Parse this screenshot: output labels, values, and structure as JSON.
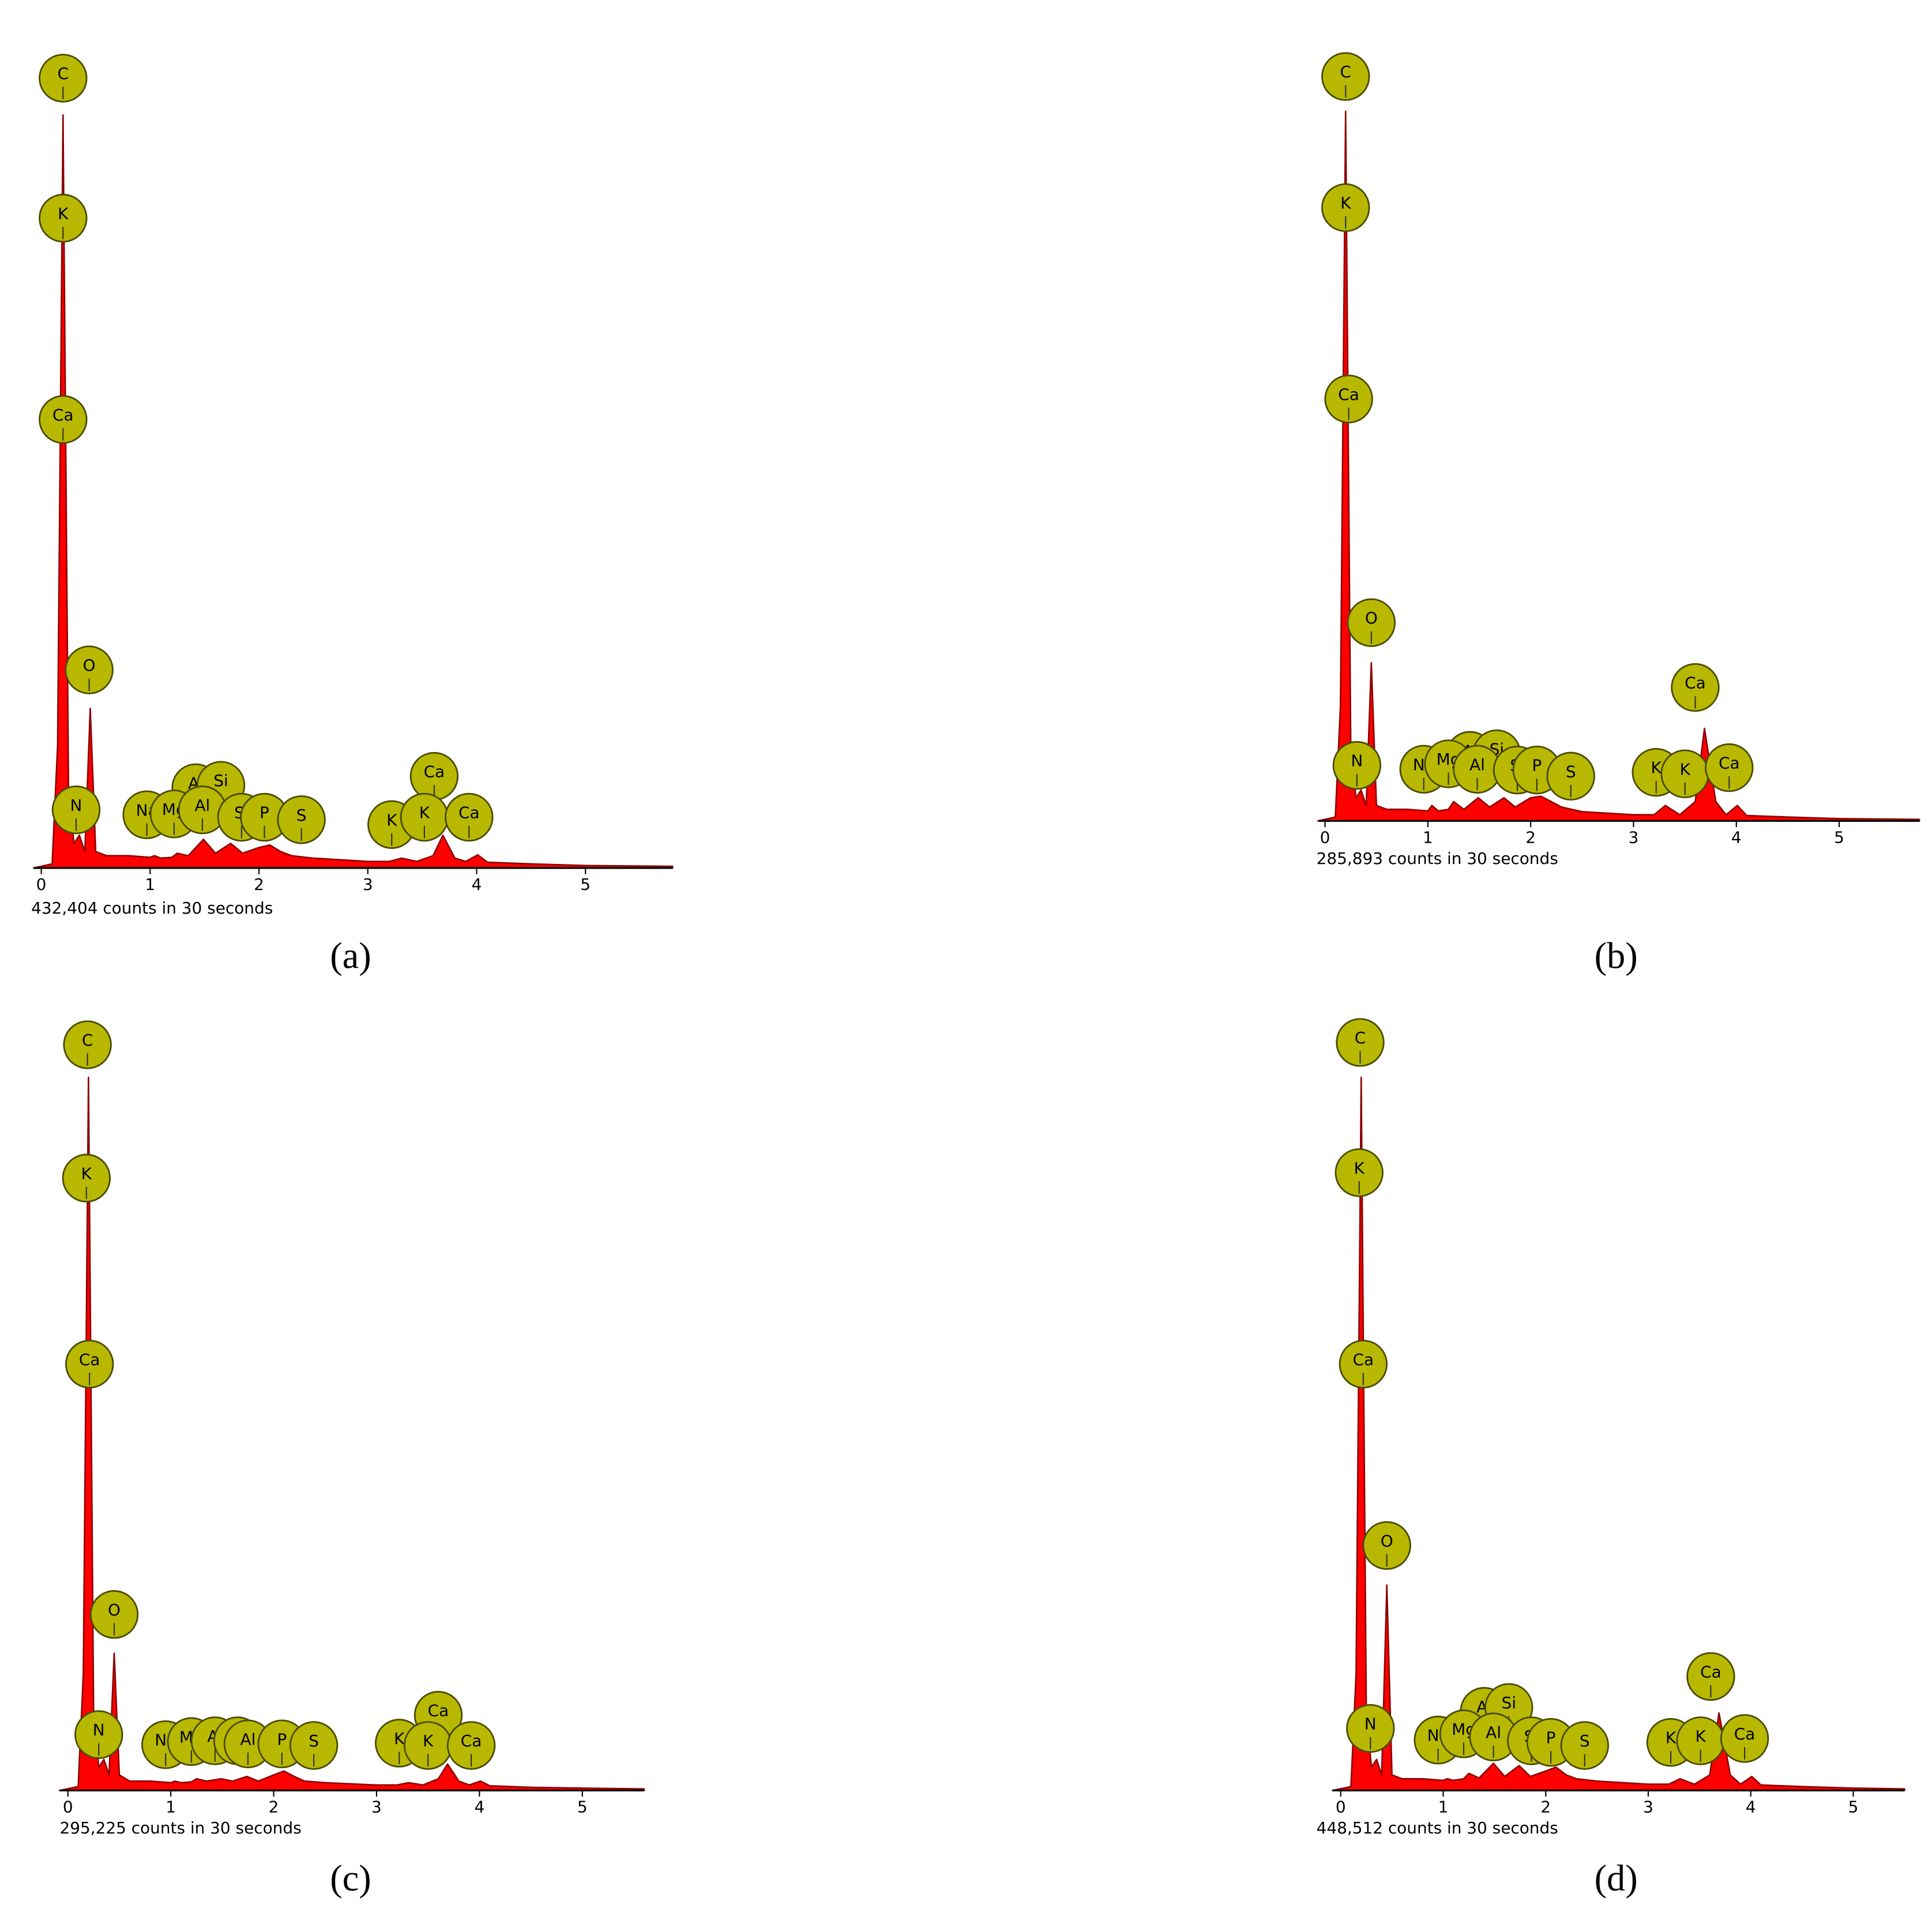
{
  "chart_data": [
    {
      "type": "area",
      "panel": "(a)",
      "caption": "432,404 counts in 30 seconds",
      "color": "#ff0000",
      "label_color": "#b8b800",
      "xlim": [
        -0.07,
        5.8
      ],
      "xticks": [
        0,
        1,
        2,
        3,
        4,
        5
      ],
      "ylim": [
        0,
        100
      ],
      "x": [
        -0.07,
        0.1,
        0.15,
        0.2,
        0.25,
        0.3,
        0.35,
        0.4,
        0.45,
        0.5,
        0.6,
        0.8,
        1.0,
        1.04,
        1.1,
        1.2,
        1.25,
        1.35,
        1.49,
        1.6,
        1.74,
        1.85,
        2.0,
        2.1,
        2.2,
        2.3,
        2.5,
        3.0,
        3.2,
        3.31,
        3.45,
        3.6,
        3.69,
        3.8,
        3.9,
        4.01,
        4.1,
        4.5,
        5.0,
        5.8
      ],
      "values": [
        0,
        0.5,
        15,
        92,
        10,
        3,
        4,
        2,
        19.5,
        2,
        1.5,
        1.5,
        1.3,
        1.5,
        1.2,
        1.3,
        1.8,
        1.5,
        3.5,
        1.8,
        3,
        1.8,
        2.5,
        2.8,
        2,
        1.5,
        1.2,
        0.8,
        0.8,
        1.2,
        0.8,
        1.5,
        4,
        1.2,
        0.8,
        1.6,
        0.7,
        0.5,
        0.3,
        0.2
      ],
      "labels": [
        {
          "text": "C",
          "x": 0.2,
          "y": 96.5
        },
        {
          "text": "K",
          "x": 0.2,
          "y": 79.4
        },
        {
          "text": "Ca",
          "x": 0.2,
          "y": 54.8
        },
        {
          "text": "O",
          "x": 0.44,
          "y": 24.2
        },
        {
          "text": "N",
          "x": 0.32,
          "y": 7.1
        },
        {
          "text": "Al",
          "x": 1.42,
          "y": 9.8
        },
        {
          "text": "Si",
          "x": 1.65,
          "y": 10.1
        },
        {
          "text": "Na",
          "x": 0.97,
          "y": 6.5
        },
        {
          "text": "Mg",
          "x": 1.22,
          "y": 6.6
        },
        {
          "text": "Al",
          "x": 1.48,
          "y": 7.1
        },
        {
          "text": "Si",
          "x": 1.84,
          "y": 6.2
        },
        {
          "text": "P",
          "x": 2.05,
          "y": 6.2
        },
        {
          "text": "S",
          "x": 2.39,
          "y": 5.9
        },
        {
          "text": "K",
          "x": 3.22,
          "y": 5.3
        },
        {
          "text": "Ca",
          "x": 3.61,
          "y": 11.2
        },
        {
          "text": "K",
          "x": 3.52,
          "y": 6.2
        },
        {
          "text": "Ca",
          "x": 3.93,
          "y": 6.2
        }
      ]
    },
    {
      "type": "area",
      "panel": "(b)",
      "caption": "285,893 counts in 30 seconds",
      "color": "#ff0000",
      "label_color": "#b8b800",
      "xlim": [
        -0.06,
        5.78
      ],
      "xticks": [
        0,
        1,
        2,
        3,
        4,
        5
      ],
      "ylim": [
        0,
        100
      ],
      "x": [
        -0.07,
        0.1,
        0.15,
        0.2,
        0.25,
        0.3,
        0.35,
        0.4,
        0.45,
        0.5,
        0.6,
        0.8,
        1.0,
        1.04,
        1.1,
        1.2,
        1.25,
        1.35,
        1.49,
        1.6,
        1.74,
        1.85,
        2.0,
        2.1,
        2.2,
        2.3,
        2.5,
        3.0,
        3.2,
        3.31,
        3.45,
        3.6,
        3.69,
        3.8,
        3.9,
        4.01,
        4.1,
        4.5,
        5.0,
        5.78
      ],
      "values": [
        0,
        0.5,
        15,
        92,
        10,
        3,
        4,
        2,
        20.5,
        2,
        1.5,
        1.5,
        1.3,
        2,
        1.3,
        1.5,
        2.5,
        1.5,
        3,
        1.8,
        3,
        1.8,
        3,
        3.2,
        2.5,
        1.8,
        1.2,
        0.8,
        0.8,
        2,
        0.8,
        2.5,
        12,
        2.5,
        0.8,
        2,
        0.7,
        0.5,
        0.3,
        0.2
      ],
      "labels": [
        {
          "text": "C",
          "x": 0.2,
          "y": 96.5
        },
        {
          "text": "K",
          "x": 0.2,
          "y": 79.5
        },
        {
          "text": "Ca",
          "x": 0.23,
          "y": 54.7
        },
        {
          "text": "O",
          "x": 0.45,
          "y": 25.7
        },
        {
          "text": "N",
          "x": 0.31,
          "y": 7.2
        },
        {
          "text": "Al",
          "x": 1.41,
          "y": 8.5
        },
        {
          "text": "Si",
          "x": 1.67,
          "y": 8.7
        },
        {
          "text": "Na",
          "x": 0.96,
          "y": 6.7
        },
        {
          "text": "Mg",
          "x": 1.2,
          "y": 7.4
        },
        {
          "text": "Al",
          "x": 1.48,
          "y": 6.7
        },
        {
          "text": "Si",
          "x": 1.87,
          "y": 6.6
        },
        {
          "text": "P",
          "x": 2.06,
          "y": 6.6
        },
        {
          "text": "S",
          "x": 2.39,
          "y": 5.8
        },
        {
          "text": "K",
          "x": 3.22,
          "y": 6.3
        },
        {
          "text": "Ca",
          "x": 3.6,
          "y": 17.3
        },
        {
          "text": "K",
          "x": 3.5,
          "y": 6.1
        },
        {
          "text": "Ca",
          "x": 3.93,
          "y": 6.9
        }
      ]
    },
    {
      "type": "area",
      "panel": "(c)",
      "caption": "295,225 counts in 30 seconds",
      "color": "#ff0000",
      "label_color": "#b8b800",
      "xlim": [
        -0.08,
        5.6
      ],
      "xticks": [
        0,
        1,
        2,
        3,
        4,
        5
      ],
      "ylim": [
        0,
        100
      ],
      "x": [
        -0.08,
        0.1,
        0.15,
        0.2,
        0.25,
        0.3,
        0.35,
        0.4,
        0.45,
        0.5,
        0.6,
        0.8,
        1.0,
        1.04,
        1.1,
        1.2,
        1.25,
        1.35,
        1.49,
        1.6,
        1.74,
        1.85,
        2.0,
        2.1,
        2.2,
        2.3,
        2.5,
        3.0,
        3.2,
        3.31,
        3.45,
        3.6,
        3.69,
        3.8,
        3.9,
        4.01,
        4.1,
        4.5,
        5.0,
        5.6
      ],
      "values": [
        0,
        0.5,
        15,
        92,
        10,
        3,
        4,
        2,
        17.7,
        2,
        1.2,
        1.2,
        1.0,
        1.2,
        1.0,
        1.1,
        1.5,
        1.2,
        1.5,
        1.2,
        1.8,
        1.2,
        2,
        2.5,
        1.8,
        1.2,
        1,
        0.7,
        0.7,
        1,
        0.7,
        1.5,
        3.4,
        1.2,
        0.7,
        1.2,
        0.6,
        0.4,
        0.3,
        0.2
      ],
      "labels": [
        {
          "text": "C",
          "x": 0.19,
          "y": 96.2
        },
        {
          "text": "K",
          "x": 0.18,
          "y": 79
        },
        {
          "text": "Ca",
          "x": 0.21,
          "y": 55
        },
        {
          "text": "O",
          "x": 0.45,
          "y": 22.7
        },
        {
          "text": "N",
          "x": 0.3,
          "y": 7.2
        },
        {
          "text": "Na",
          "x": 0.95,
          "y": 5.9
        },
        {
          "text": "Mg",
          "x": 1.2,
          "y": 6.3
        },
        {
          "text": "Al",
          "x": 1.43,
          "y": 6.4
        },
        {
          "text": "Si",
          "x": 1.65,
          "y": 6.4
        },
        {
          "text": "Al",
          "x": 1.75,
          "y": 6.0
        },
        {
          "text": "P",
          "x": 2.08,
          "y": 6.0
        },
        {
          "text": "S",
          "x": 2.39,
          "y": 5.8
        },
        {
          "text": "K",
          "x": 3.22,
          "y": 6.1
        },
        {
          "text": "Ca",
          "x": 3.6,
          "y": 9.7
        },
        {
          "text": "K",
          "x": 3.5,
          "y": 5.8
        },
        {
          "text": "Ca",
          "x": 3.92,
          "y": 5.8
        }
      ]
    },
    {
      "type": "area",
      "panel": "(d)",
      "caption": "448,512 counts in 30 seconds",
      "color": "#ff0000",
      "label_color": "#b8b800",
      "xlim": [
        -0.08,
        5.5
      ],
      "xticks": [
        0,
        1,
        2,
        3,
        4,
        5
      ],
      "ylim": [
        0,
        100
      ],
      "x": [
        -0.08,
        0.1,
        0.15,
        0.2,
        0.25,
        0.3,
        0.35,
        0.4,
        0.45,
        0.5,
        0.6,
        0.8,
        1.0,
        1.04,
        1.1,
        1.2,
        1.25,
        1.35,
        1.49,
        1.6,
        1.74,
        1.85,
        2.0,
        2.1,
        2.2,
        2.3,
        2.5,
        3.0,
        3.2,
        3.31,
        3.45,
        3.6,
        3.69,
        3.8,
        3.9,
        4.01,
        4.1,
        4.5,
        5.0,
        5.5
      ],
      "values": [
        0,
        0.5,
        15,
        92,
        10,
        3,
        4,
        2,
        26.5,
        2,
        1.5,
        1.5,
        1.3,
        1.5,
        1.3,
        1.5,
        2.2,
        1.6,
        3.5,
        1.8,
        3.2,
        1.8,
        2.5,
        3,
        2,
        1.5,
        1.2,
        0.8,
        0.8,
        1.5,
        0.8,
        2,
        10,
        2,
        0.8,
        1.8,
        0.7,
        0.5,
        0.3,
        0.2
      ],
      "labels": [
        {
          "text": "C",
          "x": 0.19,
          "y": 96.5
        },
        {
          "text": "K",
          "x": 0.18,
          "y": 79.7
        },
        {
          "text": "Ca",
          "x": 0.22,
          "y": 55
        },
        {
          "text": "O",
          "x": 0.45,
          "y": 31.6
        },
        {
          "text": "N",
          "x": 0.29,
          "y": 8
        },
        {
          "text": "Al",
          "x": 1.4,
          "y": 10.2
        },
        {
          "text": "Si",
          "x": 1.64,
          "y": 10.7
        },
        {
          "text": "Na",
          "x": 0.95,
          "y": 6.5
        },
        {
          "text": "Mg",
          "x": 1.2,
          "y": 7.3
        },
        {
          "text": "Al",
          "x": 1.49,
          "y": 6.9
        },
        {
          "text": "Si",
          "x": 1.86,
          "y": 6.4
        },
        {
          "text": "P",
          "x": 2.05,
          "y": 6.2
        },
        {
          "text": "S",
          "x": 2.38,
          "y": 5.8
        },
        {
          "text": "K",
          "x": 3.22,
          "y": 6.2
        },
        {
          "text": "Ca",
          "x": 3.61,
          "y": 14.7
        },
        {
          "text": "K",
          "x": 3.51,
          "y": 6.4
        },
        {
          "text": "Ca",
          "x": 3.94,
          "y": 6.7
        }
      ]
    }
  ]
}
